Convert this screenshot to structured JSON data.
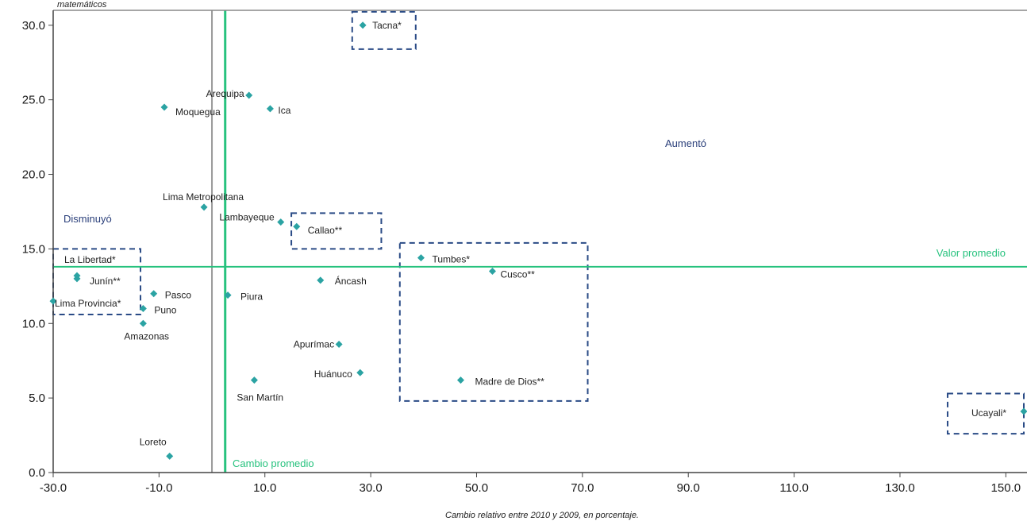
{
  "chart_data": {
    "type": "scatter",
    "ylabel": "matemáticos",
    "xlabel": "Cambio relativo entre 2010 y 2009, en porcentaje.",
    "xlim": [
      -30,
      154
    ],
    "ylim": [
      0,
      31
    ],
    "x_ticks": [
      -30,
      -10,
      10,
      30,
      50,
      70,
      90,
      110,
      130,
      150
    ],
    "x_tick_labels": [
      "-30.0",
      "-10.0",
      "10.0",
      "30.0",
      "50.0",
      "70.0",
      "90.0",
      "110.0",
      "130.0",
      "150.0"
    ],
    "y_ticks": [
      0,
      5,
      10,
      15,
      20,
      25,
      30
    ],
    "y_tick_labels": [
      "0.0",
      "5.0",
      "10.0",
      "15.0",
      "20.0",
      "25.0",
      "30.0"
    ],
    "colors": {
      "marker": "#2ba3a3",
      "reference": "#27c27e",
      "box": "#2a4b86",
      "region_text": "#2a3f7a",
      "axis": "#888888"
    },
    "reference_lines": {
      "average_value": {
        "y": 13.8,
        "label": "Valor promedio"
      },
      "average_change": {
        "x": 2.5,
        "label": "Cambio promedio"
      },
      "zero_line_x": 0
    },
    "regions": [
      {
        "label": "Aumentó",
        "x": 90,
        "y": 22
      },
      {
        "label": "Disminuyó",
        "x": -24,
        "y": 17
      }
    ],
    "points": [
      {
        "name": "Tacna*",
        "x": 28.5,
        "y": 30.0
      },
      {
        "name": "Arequipa",
        "x": 7.0,
        "y": 25.3
      },
      {
        "name": "Moquegua",
        "x": -9.0,
        "y": 24.5
      },
      {
        "name": "Ica",
        "x": 11.0,
        "y": 24.4
      },
      {
        "name": "Lima Metropolitana",
        "x": -1.5,
        "y": 17.8
      },
      {
        "name": "Lambayeque",
        "x": 13.0,
        "y": 16.8
      },
      {
        "name": "Callao**",
        "x": 16.0,
        "y": 16.5
      },
      {
        "name": "Tumbes*",
        "x": 39.5,
        "y": 14.4
      },
      {
        "name": "Cusco**",
        "x": 53.0,
        "y": 13.5
      },
      {
        "name": "La Libertad*",
        "x": -25.5,
        "y": 13.2
      },
      {
        "name": "Junín**",
        "x": -25.5,
        "y": 13.0
      },
      {
        "name": "Áncash",
        "x": 20.5,
        "y": 12.9
      },
      {
        "name": "Lima Provincia*",
        "x": -30.0,
        "y": 11.5
      },
      {
        "name": "Pasco",
        "x": -11.0,
        "y": 12.0
      },
      {
        "name": "Piura",
        "x": 3.0,
        "y": 11.9
      },
      {
        "name": "Puno",
        "x": -13.0,
        "y": 11.0
      },
      {
        "name": "Amazonas",
        "x": -13.0,
        "y": 10.0
      },
      {
        "name": "Apurímac",
        "x": 24.0,
        "y": 8.6
      },
      {
        "name": "Huánuco",
        "x": 28.0,
        "y": 6.7
      },
      {
        "name": "Madre de Dios**",
        "x": 47.0,
        "y": 6.2
      },
      {
        "name": "San Martín",
        "x": 8.0,
        "y": 6.2
      },
      {
        "name": "Loreto",
        "x": -8.0,
        "y": 1.1
      },
      {
        "name": "Ucayali*",
        "x": 153.5,
        "y": 4.1
      }
    ],
    "boxes": [
      {
        "name": "box-tacna",
        "x0": 26.5,
        "x1": 38.5,
        "y0": 28.4,
        "y1": 30.9
      },
      {
        "name": "box-callao",
        "x0": 15.0,
        "x1": 32.0,
        "y0": 15.0,
        "y1": 17.4
      },
      {
        "name": "box-libertad",
        "x0": -30.0,
        "x1": -13.5,
        "y0": 10.6,
        "y1": 15.0
      },
      {
        "name": "box-tumbes",
        "x0": 35.5,
        "x1": 71.0,
        "y0": 4.8,
        "y1": 15.4
      },
      {
        "name": "box-ucayali",
        "x0": 139.0,
        "x1": 155.0,
        "y0": 2.6,
        "y1": 5.3
      }
    ]
  }
}
